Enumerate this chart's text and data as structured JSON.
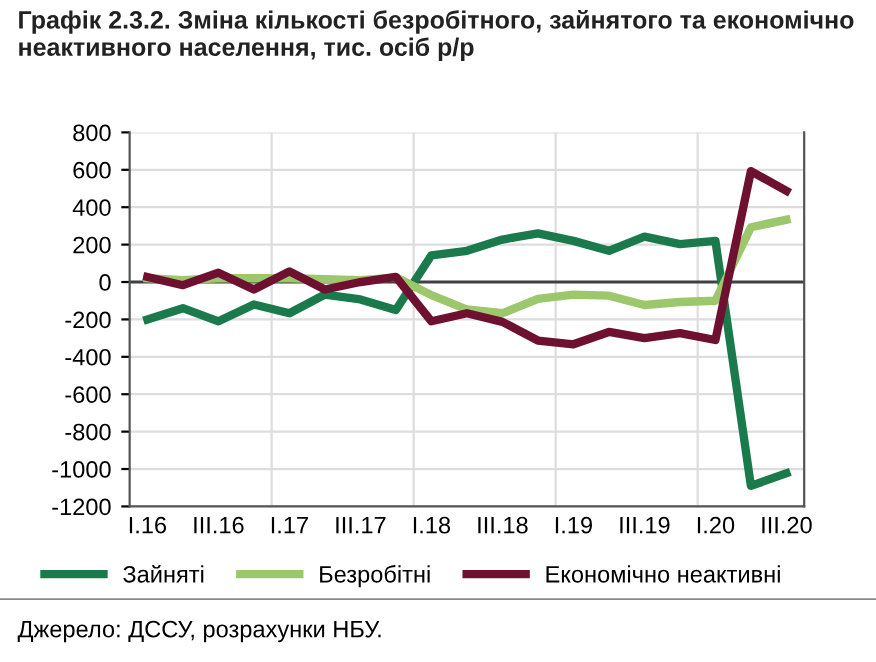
{
  "chart_data": {
    "type": "line",
    "title": "Графік 2.3.2. Зміна кількості безробітного, зайнятого та економічно неактивного населення, тис. осіб р/р",
    "categories": [
      "I.16",
      null,
      "III.16",
      null,
      "I.17",
      null,
      "III.17",
      null,
      "I.18",
      null,
      "III.18",
      null,
      "I.19",
      null,
      "III.19",
      null,
      "I.20",
      null,
      "III.20"
    ],
    "series": [
      {
        "name": "Зайняті",
        "color": "#1b7a4b",
        "values": [
          -200,
          -140,
          -210,
          -120,
          -167,
          -67,
          -93,
          -150,
          143,
          167,
          227,
          260,
          220,
          167,
          243,
          203,
          220,
          -1090,
          -1023
        ]
      },
      {
        "name": "Безробітні",
        "color": "#9cc76c",
        "values": [
          20,
          10,
          20,
          20,
          20,
          15,
          10,
          25,
          -70,
          -147,
          -167,
          -90,
          -67,
          -73,
          -123,
          -107,
          -100,
          293,
          333
        ]
      },
      {
        "name": "Економічно неактивні",
        "color": "#6e1030",
        "values": [
          27,
          -17,
          50,
          -40,
          57,
          -40,
          0,
          27,
          -210,
          -167,
          -213,
          -313,
          -333,
          -267,
          -300,
          -273,
          -310,
          593,
          487
        ]
      }
    ],
    "ylim": [
      -1200,
      800
    ],
    "yticks": [
      -1200,
      -1000,
      -800,
      -600,
      -400,
      -200,
      0,
      200,
      400,
      600,
      800
    ],
    "ref_lines": [
      {
        "axis": "y",
        "value": 0,
        "color": "#404040"
      }
    ],
    "grid": true,
    "legend": "bottom",
    "marker": "none",
    "line_style": "solid",
    "annotations": [
      "Джерело: ДССУ, розрахунки НБУ."
    ]
  }
}
